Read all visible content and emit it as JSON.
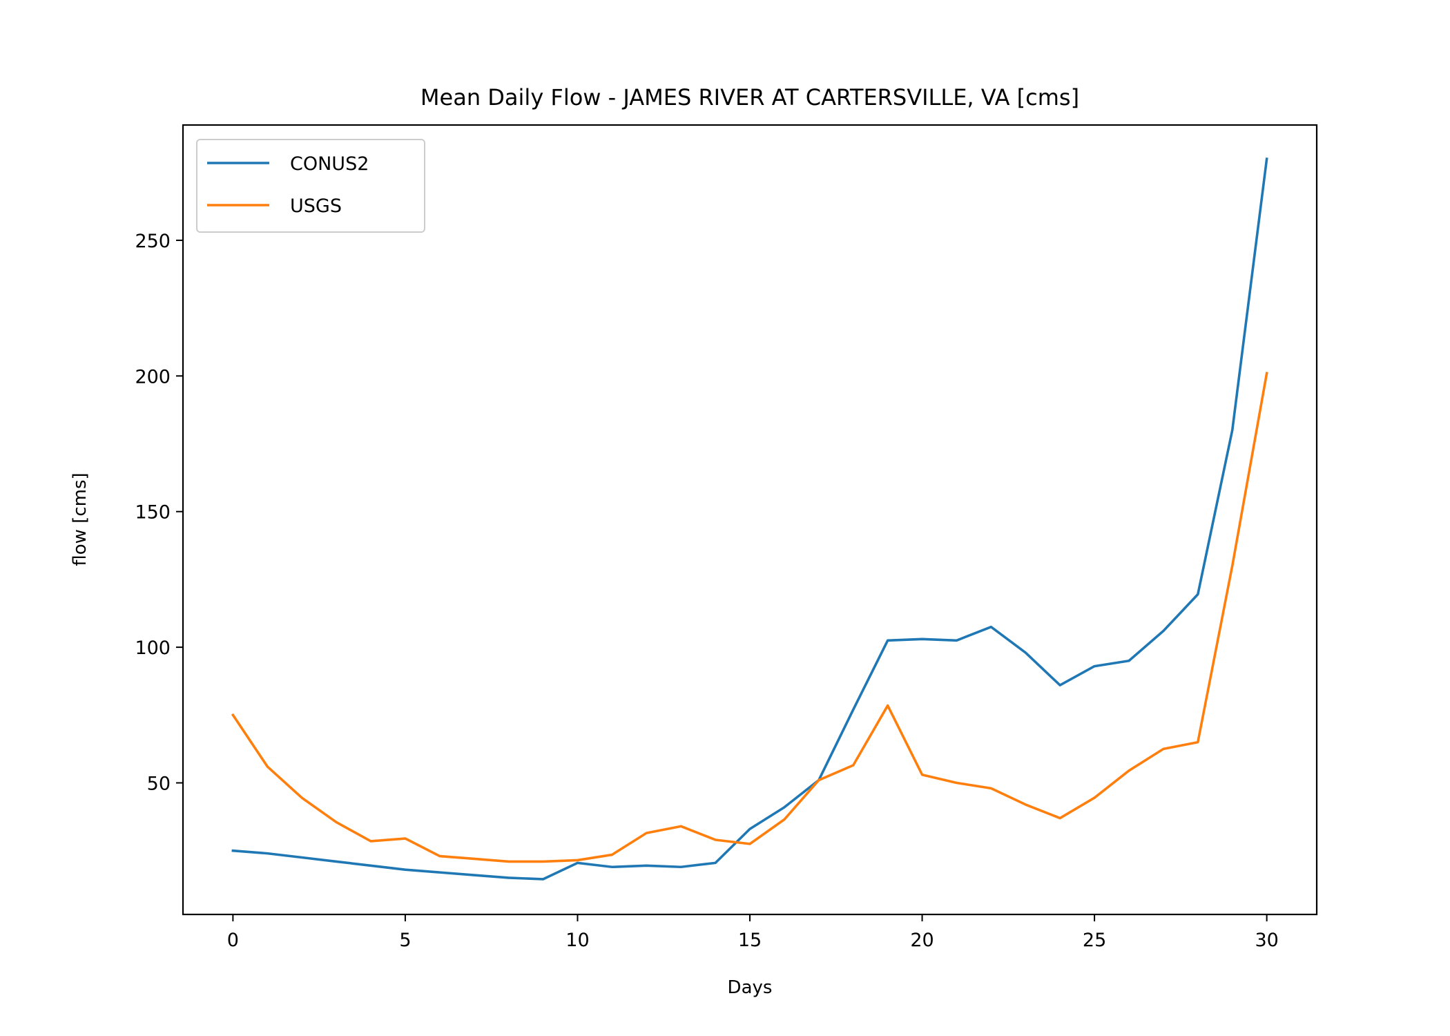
{
  "chart_data": {
    "type": "line",
    "title": "Mean Daily Flow - JAMES RIVER AT CARTERSVILLE, VA [cms]",
    "xlabel": "Days",
    "ylabel": "flow [cms]",
    "xlim": [
      -1.45,
      31.45
    ],
    "ylim": [
      1.5,
      292.5
    ],
    "xticks": [
      0,
      5,
      10,
      15,
      20,
      25,
      30
    ],
    "yticks": [
      50,
      100,
      150,
      200,
      250
    ],
    "grid": false,
    "legend_position": "upper-left",
    "x": [
      0,
      1,
      2,
      3,
      4,
      5,
      6,
      7,
      8,
      9,
      10,
      11,
      12,
      13,
      14,
      15,
      16,
      17,
      18,
      19,
      20,
      21,
      22,
      23,
      24,
      25,
      26,
      27,
      28,
      29,
      30
    ],
    "series": [
      {
        "name": "CONUS2",
        "color": "#1f77b4",
        "values": [
          25,
          24,
          22.5,
          21,
          19.5,
          18,
          17,
          16,
          15,
          14.5,
          20.5,
          19,
          19.5,
          19,
          20.5,
          33,
          41,
          51,
          77,
          102.5,
          103,
          102.5,
          107.5,
          98,
          86,
          93,
          95,
          106,
          119.5,
          180,
          280
        ]
      },
      {
        "name": "USGS",
        "color": "#ff7f0e",
        "values": [
          75,
          56,
          44.5,
          35.5,
          28.5,
          29.5,
          23,
          22,
          21,
          21,
          21.5,
          23.5,
          31.5,
          34,
          29,
          27.5,
          36.5,
          51,
          56.5,
          78.5,
          53,
          50,
          48,
          42,
          37,
          44.5,
          54.5,
          62.5,
          65,
          130,
          201
        ]
      }
    ]
  }
}
